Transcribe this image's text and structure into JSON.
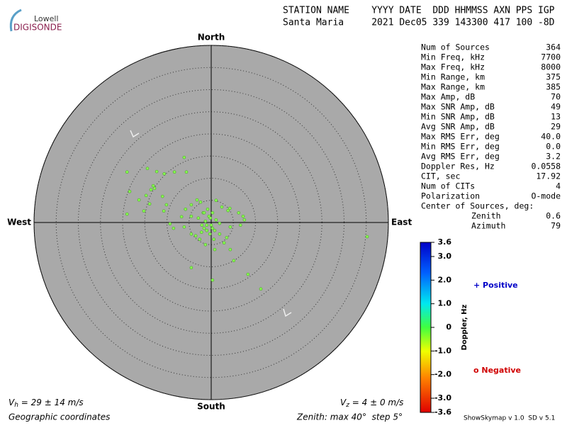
{
  "chart_data": {
    "type": "polar-scatter",
    "logo": {
      "top": "Lowell",
      "bottom": "DIGISONDE"
    },
    "header": {
      "names": "STATION NAME    YYYY DATE  DDD HHMMSS AXN PPS IGP",
      "values": "Santa Maria     2021 Dec05 339 143300 417 100 -8D"
    },
    "directions": {
      "north": "North",
      "south": "South",
      "east": "East",
      "west": "West"
    },
    "rlim": [
      0,
      40
    ],
    "rticks": [
      5,
      10,
      15,
      20,
      25,
      30,
      35,
      40
    ],
    "color": "#88ff50",
    "x": [
      -6.1,
      -19.0,
      -14.4,
      -12.3,
      -10.6,
      -8.3,
      -5.6,
      -18.4,
      -13.1,
      -13.6,
      -12.8,
      -14.7,
      -11.0,
      -16.3,
      -13.9,
      -19.0,
      -15.2,
      -10.7,
      -10.1,
      -3.2,
      -2.4,
      -4.5,
      1.1,
      2.4,
      4.2,
      3.8,
      6.2,
      7.2,
      7.5,
      6.6,
      4.3,
      -9.3,
      -8.5,
      -6.1,
      -4.5,
      -3.5,
      -2.2,
      -1.0,
      0.3,
      1.9,
      3.5,
      2.9,
      4.3,
      5.1,
      0.8,
      -1.3,
      -4.5,
      0.3,
      8.3,
      11.2,
      35.2,
      -1.8,
      -0.5,
      -1.3,
      0,
      -2.1,
      1.1,
      0.3,
      -0.8,
      1.9,
      -2.9,
      -1.6,
      -0.3,
      0.6,
      -2.6,
      -4.5,
      -6.7,
      -5.8,
      -1.0,
      -0.2,
      0.8,
      -1.6
    ],
    "y": [
      14.7,
      11.4,
      12.2,
      11.5,
      11.0,
      11.4,
      11.4,
      7.0,
      8.3,
      7.4,
      7.7,
      6.1,
      5.9,
      5.1,
      4.2,
      1.9,
      2.6,
      2.6,
      4.0,
      5.1,
      4.6,
      4.0,
      5.0,
      3.5,
      3.2,
      2.7,
      2.2,
      1.4,
      0.6,
      -0.6,
      -1.0,
      -0.3,
      -1.3,
      -1.0,
      -2.6,
      -3.0,
      -2.2,
      -1.8,
      -1.3,
      -2.6,
      -3.4,
      -4.6,
      -6.1,
      -8.6,
      -6.1,
      -5.0,
      -10.2,
      -13.0,
      -11.7,
      -15.0,
      -3.2,
      2.2,
      1.4,
      0.3,
      -0.6,
      -0.6,
      0.6,
      2.2,
      3.0,
      -0.2,
      1.0,
      -1.3,
      -2.6,
      -3.8,
      -3.8,
      1.4,
      1.3,
      3.0,
      -0.6,
      1.0,
      -1.8,
      2.2
    ],
    "stats": [
      [
        "Num of Sources",
        "364"
      ],
      [
        "Min Freq, kHz",
        "7700"
      ],
      [
        "Max Freq, kHz",
        "8000"
      ],
      [
        "Min Range, km",
        "375"
      ],
      [
        "Max Range, km",
        "385"
      ],
      [
        "Max Amp, dB",
        "70"
      ],
      [
        "Max SNR Amp, dB",
        "49"
      ],
      [
        "Min SNR Amp, dB",
        "13"
      ],
      [
        "Avg SNR Amp, dB",
        "29"
      ],
      [
        "Max RMS Err, deg",
        "40.0"
      ],
      [
        "Min RMS Err, deg",
        "0.0"
      ],
      [
        "Avg RMS Err, deg",
        "3.2"
      ],
      [
        "Doppler Res, Hz",
        "0.0558"
      ],
      [
        "CIT, sec",
        "17.92"
      ],
      [
        "Num of CITs",
        "4"
      ],
      [
        "Polarization",
        "O-mode"
      ]
    ],
    "center": {
      "title": "Center of Sources, deg:",
      "rows": [
        [
          "Zenith",
          "0.6"
        ],
        [
          "Azimuth",
          "79"
        ]
      ]
    },
    "colorbar": {
      "label": "Doppler, Hz",
      "lim": [
        -3.6,
        3.6
      ],
      "ticks": [
        3.6,
        {
          "value": 3,
          "label": "3.0"
        },
        {
          "value": 2,
          "label": "2.0"
        },
        {
          "value": 1,
          "label": "1.0"
        },
        0,
        {
          "value": -1,
          "label": "-1.0"
        },
        {
          "value": -2,
          "label": "-2.0"
        },
        {
          "value": -3,
          "label": "-3.0"
        },
        -3.6
      ]
    },
    "legend": {
      "positive": "+ Positive",
      "negative": "o Negative"
    },
    "vh": {
      "symbol": "V",
      "sub": "h",
      "text": " = 29 ± 14 m/s"
    },
    "vz": {
      "symbol": "V",
      "sub": "z",
      "text": " = 4 ± 0 m/s"
    },
    "coordinates": "Geographic coordinates",
    "zenith_note": "Zenith: max 40°  step 5°",
    "version": "ShowSkymap v 1.0  SD v 5.1"
  }
}
